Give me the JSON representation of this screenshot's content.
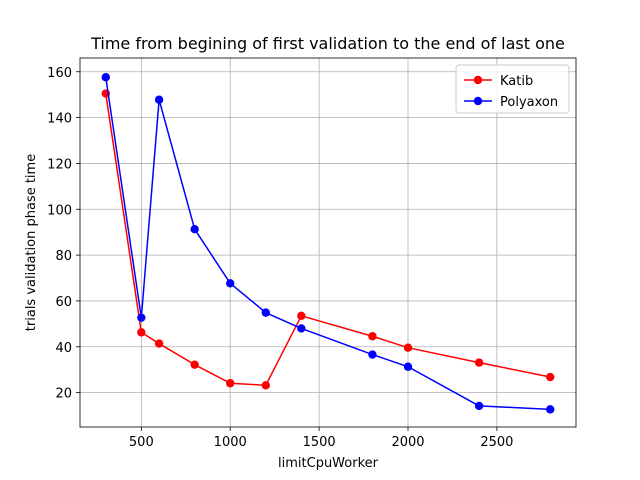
{
  "chart_data": {
    "type": "line",
    "title": "Time from begining of first validation to the end of last one",
    "xlabel": "limitCpuWorker",
    "ylabel": "trials validation phase time",
    "xlim": [
      155,
      2945
    ],
    "ylim": [
      5,
      166
    ],
    "xticks": [
      500,
      1000,
      1500,
      2000,
      2500
    ],
    "yticks": [
      20,
      40,
      60,
      80,
      100,
      120,
      140,
      160
    ],
    "grid": true,
    "legend_position": "upper-right",
    "series": [
      {
        "name": "Katib",
        "color": "#ff0000",
        "x": [
          300,
          500,
          600,
          800,
          1000,
          1200,
          1400,
          1800,
          2000,
          2400,
          2800
        ],
        "y": [
          150.5,
          46.3,
          41.4,
          32.2,
          24.1,
          23.2,
          53.5,
          44.6,
          39.6,
          33.1,
          26.8
        ]
      },
      {
        "name": "Polyaxon",
        "color": "#0000ff",
        "x": [
          300,
          500,
          600,
          800,
          1000,
          1200,
          1400,
          1800,
          2000,
          2400,
          2800
        ],
        "y": [
          157.6,
          52.7,
          147.8,
          91.3,
          67.7,
          54.9,
          48.0,
          36.6,
          31.3,
          14.2,
          12.7
        ]
      }
    ]
  }
}
